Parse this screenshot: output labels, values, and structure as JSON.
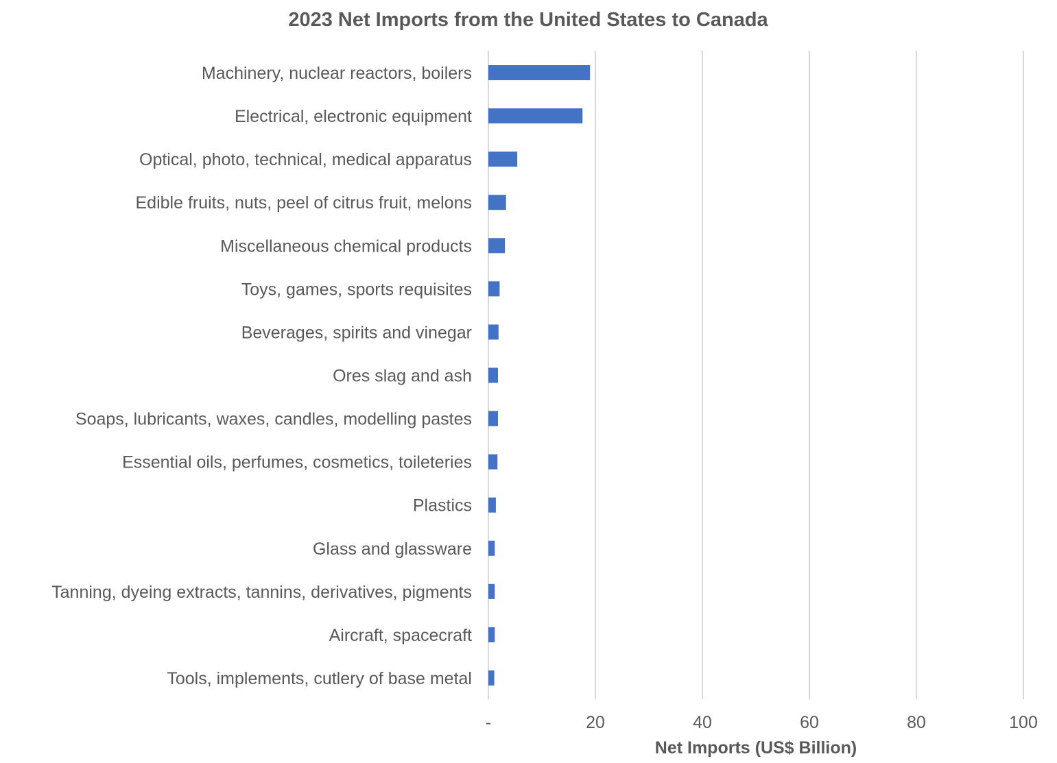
{
  "chart_data": {
    "type": "bar",
    "orientation": "horizontal",
    "title": "2023 Net Imports from the United States to Canada",
    "xlabel": "Net Imports (US$ Billion)",
    "ylabel": "",
    "xlim": [
      0,
      100
    ],
    "x_ticks": [
      0,
      20,
      40,
      60,
      80,
      100
    ],
    "x_tick_labels": [
      "-",
      "20",
      "40",
      "60",
      "80",
      "100"
    ],
    "grid": "vertical",
    "legend": "none",
    "bar_color": "#4472C4",
    "categories": [
      "Machinery, nuclear reactors, boilers",
      "Electrical, electronic equipment",
      "Optical, photo, technical, medical apparatus",
      "Edible fruits, nuts, peel of citrus fruit, melons",
      "Miscellaneous chemical products",
      "Toys, games, sports requisites",
      "Beverages, spirits and vinegar",
      "Ores slag and ash",
      "Soaps, lubricants, waxes, candles, modelling pastes",
      "Essential oils, perfumes, cosmetics, toileteries",
      "Plastics",
      "Glass and glassware",
      "Tanning, dyeing extracts, tannins, derivatives, pigments",
      "Aircraft, spacecraft",
      "Tools, implements, cutlery of base metal"
    ],
    "values": [
      19.0,
      17.6,
      5.4,
      3.3,
      3.1,
      2.1,
      1.9,
      1.8,
      1.8,
      1.7,
      1.4,
      1.2,
      1.2,
      1.2,
      1.1
    ]
  }
}
